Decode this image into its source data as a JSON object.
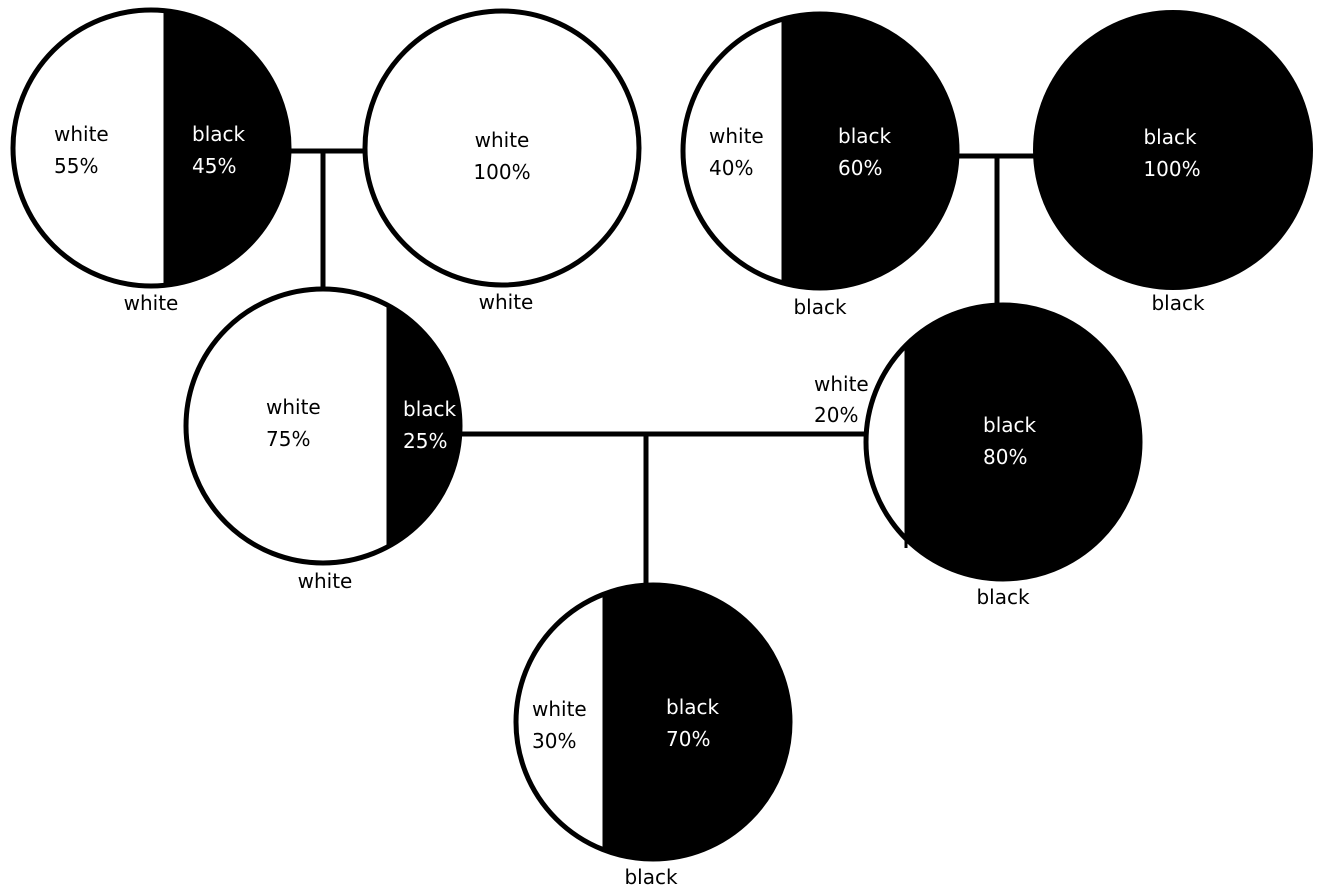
{
  "people": [
    {
      "id": "gp1",
      "white_pct": "55%",
      "black_pct": "45%",
      "white_label": "white",
      "black_label": "black",
      "classification": "white",
      "white_fraction": 0.55
    },
    {
      "id": "gp2",
      "white_pct": "100%",
      "white_label": "white",
      "classification": "white",
      "white_fraction": 1.0
    },
    {
      "id": "gp3",
      "white_pct": "40%",
      "black_pct": "60%",
      "white_label": "white",
      "black_label": "black",
      "classification": "black",
      "white_fraction": 0.4
    },
    {
      "id": "gp4",
      "black_pct": "100%",
      "black_label": "black",
      "classification": "black",
      "white_fraction": 0.0
    },
    {
      "id": "p1",
      "white_pct": "75%",
      "black_pct": "25%",
      "white_label": "white",
      "black_label": "black",
      "classification": "white",
      "white_fraction": 0.75
    },
    {
      "id": "p2",
      "white_pct": "20%",
      "black_pct": "80%",
      "white_label": "white",
      "black_label": "black",
      "classification": "black",
      "white_fraction": 0.2
    },
    {
      "id": "child",
      "white_pct": "30%",
      "black_pct": "70%",
      "white_label": "white",
      "black_label": "black",
      "classification": "black",
      "white_fraction": 0.3
    }
  ],
  "colors": {
    "white": "#ffffff",
    "black": "#000000"
  }
}
